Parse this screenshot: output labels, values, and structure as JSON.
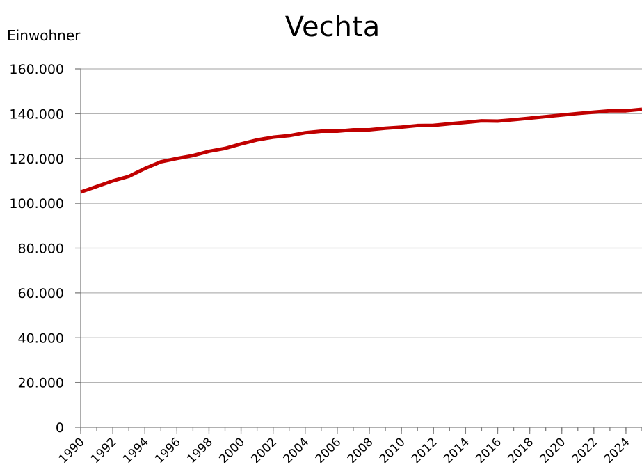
{
  "chart_data": {
    "type": "line",
    "title": "Vechta",
    "y_label": "Einwohner",
    "x": [
      1990,
      1991,
      1992,
      1993,
      1994,
      1995,
      1996,
      1997,
      1998,
      1999,
      2000,
      2001,
      2002,
      2003,
      2004,
      2005,
      2006,
      2007,
      2008,
      2009,
      2010,
      2011,
      2012,
      2013,
      2014,
      2015,
      2016,
      2017,
      2018,
      2019,
      2020,
      2021,
      2022,
      2023,
      2024,
      2025
    ],
    "series": [
      {
        "name": "Vechta",
        "color": "#c00000",
        "values": [
          105000,
          107500,
          110000,
          112000,
          115500,
          118500,
          120000,
          121300,
          123200,
          124500,
          126500,
          128300,
          129500,
          130200,
          131500,
          132200,
          132200,
          132800,
          132800,
          133500,
          134000,
          134700,
          134800,
          135500,
          136100,
          136800,
          136700,
          137300,
          138000,
          138700,
          139400,
          140100,
          140700,
          141300,
          141300,
          142000
        ]
      }
    ],
    "xlim": [
      1990,
      2025
    ],
    "xticks": [
      1990,
      1992,
      1994,
      1996,
      1998,
      2000,
      2002,
      2004,
      2006,
      2008,
      2010,
      2012,
      2014,
      2016,
      2018,
      2020,
      2022,
      2024
    ],
    "ylim": [
      0,
      160000
    ],
    "yticks": [
      0,
      {
        "value": 20000,
        "label": "20.000"
      },
      {
        "value": 40000,
        "label": "40.000"
      },
      {
        "value": 60000,
        "label": "60.000"
      },
      {
        "value": 80000,
        "label": "80.000"
      },
      {
        "value": 100000,
        "label": "100.000"
      },
      {
        "value": 120000,
        "label": "120.000"
      },
      {
        "value": 140000,
        "label": "140.000"
      },
      {
        "value": 160000,
        "label": "160.000"
      }
    ],
    "grid": true
  }
}
